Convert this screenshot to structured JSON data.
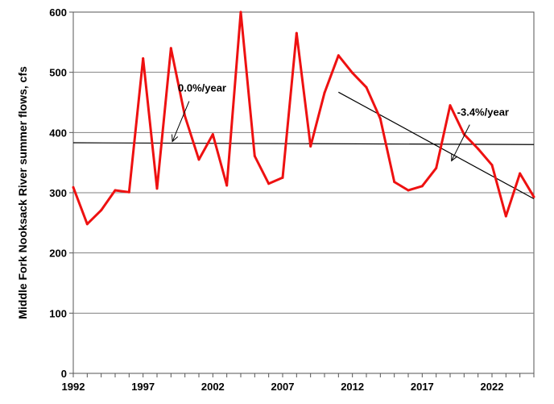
{
  "chart_data": {
    "type": "line",
    "ylabel": "Middle Fork Nooksack River summer flows, cfs",
    "xlabel": "",
    "xlim": [
      1992,
      2025
    ],
    "ylim": [
      0,
      600
    ],
    "yticks": [
      0,
      100,
      200,
      300,
      400,
      500,
      600
    ],
    "ytick_labels": [
      "0",
      "100",
      "200",
      "300",
      "400",
      "500",
      "600"
    ],
    "xticks": [
      1992,
      1997,
      2002,
      2007,
      2012,
      2017,
      2022
    ],
    "xtick_labels": [
      "1992",
      "1997",
      "2002",
      "2007",
      "2012",
      "2017",
      "2022"
    ],
    "grid": "horizontal",
    "series": [
      {
        "color": "#ee1111",
        "x": [
          1992,
          1993,
          1994,
          1995,
          1996,
          1997,
          1998,
          1999,
          2000,
          2001,
          2002,
          2003,
          2004,
          2005,
          2006,
          2007,
          2008,
          2009,
          2010,
          2011,
          2012,
          2013,
          2014,
          2015,
          2016,
          2017,
          2018,
          2019,
          2020,
          2021,
          2022,
          2023,
          2024,
          2025
        ],
        "values": [
          309,
          248,
          271,
          304,
          301,
          523,
          307,
          540,
          427,
          355,
          397,
          312,
          600,
          361,
          315,
          325,
          565,
          377,
          466,
          528,
          499,
          475,
          423,
          318,
          304,
          311,
          341,
          445,
          397,
          373,
          346,
          261,
          332,
          293
        ]
      }
    ],
    "trendlines": [
      {
        "color": "#000000",
        "x": [
          1992,
          2025
        ],
        "values": [
          383,
          380
        ]
      },
      {
        "color": "#000000",
        "x": [
          2011,
          2025
        ],
        "values": [
          467,
          290
        ]
      }
    ],
    "annotations": [
      {
        "text": "0.0%/year",
        "text_x": 1999.5,
        "text_y": 468,
        "arrow_from": [
          2000.3,
          452
        ],
        "arrow_to": [
          1999.1,
          385
        ]
      },
      {
        "text": "-3.4%/year",
        "text_x": 2019.5,
        "text_y": 428,
        "arrow_from": [
          2020.4,
          413
        ],
        "arrow_to": [
          2019.1,
          353
        ]
      }
    ]
  }
}
